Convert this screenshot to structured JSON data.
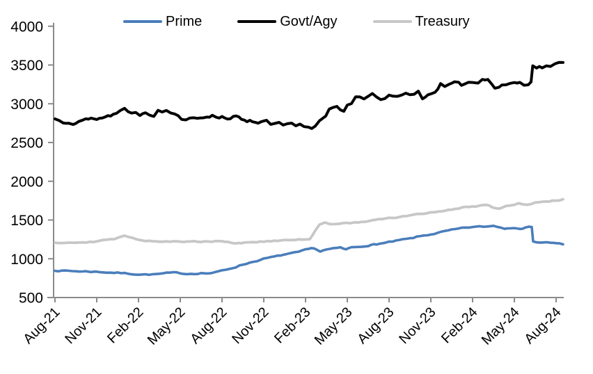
{
  "chart_data": {
    "type": "line",
    "title": "",
    "legend": {
      "position": "top",
      "entries": [
        "Prime",
        "Govt/Agy",
        "Treasury"
      ]
    },
    "x_axis": {
      "tick_labels": [
        "Aug-21",
        "Nov-21",
        "Feb-22",
        "May-22",
        "Aug-22",
        "Nov-22",
        "Feb-23",
        "May-23",
        "Aug-23",
        "Nov-23",
        "Feb-24",
        "May-24",
        "Aug-24"
      ],
      "tick_months": [
        0,
        3,
        6,
        9,
        12,
        15,
        18,
        21,
        24,
        27,
        30,
        33,
        36
      ],
      "range_months": [
        0,
        36.5
      ]
    },
    "y_axis": {
      "ticks": [
        500,
        1000,
        1500,
        2000,
        2500,
        3000,
        3500,
        4000
      ],
      "min": 500,
      "max": 4000,
      "gridlines": false
    },
    "axis_color": "#8a8a8a",
    "text_color": "#000000",
    "background_color": "#ffffff",
    "series": [
      {
        "name": "Prime",
        "color": "#4a7ebb",
        "anchors": [
          [
            0,
            852
          ],
          [
            0.5,
            846
          ],
          [
            1,
            843
          ],
          [
            1.5,
            840
          ],
          [
            2,
            838
          ],
          [
            3,
            833
          ],
          [
            3.5,
            828
          ],
          [
            4,
            823
          ],
          [
            4.5,
            818
          ],
          [
            5,
            812
          ],
          [
            5.5,
            806
          ],
          [
            6,
            802
          ],
          [
            6.5,
            798
          ],
          [
            7,
            797
          ],
          [
            7.5,
            803
          ],
          [
            8,
            812
          ],
          [
            8.5,
            817
          ],
          [
            9,
            813
          ],
          [
            9.5,
            807
          ],
          [
            10,
            812
          ],
          [
            10.5,
            817
          ],
          [
            11,
            813
          ],
          [
            11.5,
            822
          ],
          [
            12,
            845
          ],
          [
            12.5,
            870
          ],
          [
            13,
            898
          ],
          [
            13.5,
            926
          ],
          [
            14,
            952
          ],
          [
            14.5,
            976
          ],
          [
            15,
            998
          ],
          [
            15.5,
            1016
          ],
          [
            16,
            1032
          ],
          [
            16.4,
            1052
          ],
          [
            17,
            1066
          ],
          [
            17.5,
            1084
          ],
          [
            18,
            1110
          ],
          [
            18.6,
            1138
          ],
          [
            19.05,
            1096
          ],
          [
            19.5,
            1118
          ],
          [
            20,
            1128
          ],
          [
            20.5,
            1140
          ],
          [
            20.9,
            1118
          ],
          [
            21.3,
            1146
          ],
          [
            21.8,
            1158
          ],
          [
            22.2,
            1170
          ],
          [
            22.5,
            1162
          ],
          [
            22.9,
            1184
          ],
          [
            23.3,
            1194
          ],
          [
            23.7,
            1202
          ],
          [
            24,
            1212
          ],
          [
            24.5,
            1228
          ],
          [
            25,
            1245
          ],
          [
            25.5,
            1258
          ],
          [
            26,
            1280
          ],
          [
            26.5,
            1298
          ],
          [
            27,
            1316
          ],
          [
            27.5,
            1334
          ],
          [
            28,
            1352
          ],
          [
            28.5,
            1368
          ],
          [
            29,
            1384
          ],
          [
            29.5,
            1398
          ],
          [
            30,
            1409
          ],
          [
            30.5,
            1412
          ],
          [
            31,
            1415
          ],
          [
            31.5,
            1425
          ],
          [
            32,
            1410
          ],
          [
            32.3,
            1390
          ],
          [
            32.7,
            1399
          ],
          [
            33,
            1407
          ],
          [
            33.4,
            1397
          ],
          [
            33.8,
            1404
          ],
          [
            34.25,
            1409
          ],
          [
            34.35,
            1230
          ],
          [
            34.6,
            1217
          ],
          [
            35,
            1207
          ],
          [
            35.3,
            1215
          ],
          [
            35.6,
            1209
          ],
          [
            36,
            1196
          ],
          [
            36.5,
            1186
          ]
        ]
      },
      {
        "name": "Govt/Agy",
        "color": "#000000",
        "anchors": [
          [
            0,
            2802
          ],
          [
            0.3,
            2788
          ],
          [
            0.6,
            2772
          ],
          [
            1,
            2784
          ],
          [
            1.3,
            2772
          ],
          [
            1.7,
            2796
          ],
          [
            2,
            2800
          ],
          [
            2.4,
            2789
          ],
          [
            2.8,
            2806
          ],
          [
            3.2,
            2818
          ],
          [
            3.6,
            2830
          ],
          [
            4,
            2855
          ],
          [
            4.4,
            2878
          ],
          [
            4.7,
            2908
          ],
          [
            5,
            2946
          ],
          [
            5.25,
            2918
          ],
          [
            5.5,
            2878
          ],
          [
            5.8,
            2892
          ],
          [
            6.1,
            2868
          ],
          [
            6.5,
            2913
          ],
          [
            6.8,
            2886
          ],
          [
            7.1,
            2863
          ],
          [
            7.4,
            2910
          ],
          [
            7.7,
            2897
          ],
          [
            8,
            2905
          ],
          [
            8.3,
            2890
          ],
          [
            8.6,
            2879
          ],
          [
            8.85,
            2860
          ],
          [
            9.1,
            2796
          ],
          [
            9.4,
            2812
          ],
          [
            9.7,
            2825
          ],
          [
            10,
            2842
          ],
          [
            10.4,
            2832
          ],
          [
            10.9,
            2855
          ],
          [
            11.3,
            2845
          ],
          [
            11.6,
            2838
          ],
          [
            12,
            2836
          ],
          [
            12.4,
            2827
          ],
          [
            12.8,
            2830
          ],
          [
            13.2,
            2808
          ],
          [
            13.6,
            2797
          ],
          [
            14,
            2787
          ],
          [
            14.4,
            2778
          ],
          [
            14.8,
            2771
          ],
          [
            15.2,
            2760
          ],
          [
            15.5,
            2726
          ],
          [
            15.8,
            2747
          ],
          [
            16.1,
            2752
          ],
          [
            16.4,
            2703
          ],
          [
            16.7,
            2726
          ],
          [
            17,
            2733
          ],
          [
            17.3,
            2697
          ],
          [
            17.6,
            2710
          ],
          [
            17.9,
            2689
          ],
          [
            18.2,
            2678
          ],
          [
            18.45,
            2669
          ],
          [
            18.7,
            2691
          ],
          [
            19,
            2780
          ],
          [
            19.2,
            2801
          ],
          [
            19.45,
            2850
          ],
          [
            19.7,
            2945
          ],
          [
            20,
            2955
          ],
          [
            20.25,
            2971
          ],
          [
            20.5,
            2941
          ],
          [
            20.75,
            2931
          ],
          [
            21,
            2986
          ],
          [
            21.3,
            3020
          ],
          [
            21.6,
            3080
          ],
          [
            21.9,
            3071
          ],
          [
            22.2,
            3060
          ],
          [
            22.5,
            3077
          ],
          [
            22.8,
            3105
          ],
          [
            23.1,
            3089
          ],
          [
            23.4,
            3061
          ],
          [
            23.7,
            3087
          ],
          [
            24,
            3122
          ],
          [
            24.3,
            3110
          ],
          [
            24.6,
            3107
          ],
          [
            24.9,
            3132
          ],
          [
            25.2,
            3141
          ],
          [
            25.5,
            3108
          ],
          [
            25.8,
            3126
          ],
          [
            26.1,
            3149
          ],
          [
            26.4,
            3036
          ],
          [
            26.6,
            3068
          ],
          [
            26.8,
            3128
          ],
          [
            27,
            3151
          ],
          [
            27.3,
            3159
          ],
          [
            27.7,
            3255
          ],
          [
            28,
            3216
          ],
          [
            28.3,
            3231
          ],
          [
            28.7,
            3257
          ],
          [
            29,
            3247
          ],
          [
            29.4,
            3239
          ],
          [
            29.7,
            3259
          ],
          [
            30,
            3285
          ],
          [
            30.4,
            3299
          ],
          [
            30.7,
            3317
          ],
          [
            31.1,
            3329
          ],
          [
            31.4,
            3271
          ],
          [
            31.6,
            3217
          ],
          [
            31.9,
            3239
          ],
          [
            32.1,
            3254
          ],
          [
            32.4,
            3229
          ],
          [
            32.7,
            3235
          ],
          [
            33,
            3241
          ],
          [
            33.4,
            3251
          ],
          [
            33.7,
            3247
          ],
          [
            34,
            3261
          ],
          [
            34.2,
            3281
          ],
          [
            34.32,
            3478
          ],
          [
            34.6,
            3471
          ],
          [
            34.8,
            3485
          ],
          [
            35,
            3459
          ],
          [
            35.3,
            3476
          ],
          [
            35.6,
            3489
          ],
          [
            35.9,
            3504
          ],
          [
            36.2,
            3517
          ],
          [
            36.5,
            3532
          ]
        ]
      },
      {
        "name": "Treasury",
        "color": "#c7c7c7",
        "anchors": [
          [
            0,
            1212
          ],
          [
            0.5,
            1210
          ],
          [
            1,
            1214
          ],
          [
            1.5,
            1212
          ],
          [
            2,
            1218
          ],
          [
            2.5,
            1222
          ],
          [
            3,
            1228
          ],
          [
            3.5,
            1236
          ],
          [
            4,
            1248
          ],
          [
            4.5,
            1266
          ],
          [
            5,
            1290
          ],
          [
            5.3,
            1280
          ],
          [
            5.6,
            1268
          ],
          [
            6,
            1252
          ],
          [
            6.5,
            1240
          ],
          [
            7,
            1232
          ],
          [
            7.5,
            1228
          ],
          [
            8,
            1226
          ],
          [
            8.5,
            1221
          ],
          [
            9,
            1216
          ],
          [
            9.5,
            1218
          ],
          [
            10,
            1221
          ],
          [
            10.5,
            1224
          ],
          [
            11,
            1226
          ],
          [
            11.5,
            1228
          ],
          [
            12,
            1232
          ],
          [
            12.6,
            1215
          ],
          [
            13,
            1200
          ],
          [
            13.4,
            1206
          ],
          [
            14,
            1213
          ],
          [
            14.5,
            1218
          ],
          [
            15,
            1222
          ],
          [
            15.5,
            1226
          ],
          [
            16,
            1231
          ],
          [
            16.5,
            1236
          ],
          [
            17,
            1241
          ],
          [
            17.5,
            1246
          ],
          [
            18,
            1250
          ],
          [
            18.3,
            1257
          ],
          [
            18.7,
            1360
          ],
          [
            19,
            1432
          ],
          [
            19.4,
            1468
          ],
          [
            19.8,
            1456
          ],
          [
            20.3,
            1451
          ],
          [
            20.7,
            1460
          ],
          [
            21,
            1468
          ],
          [
            21.4,
            1461
          ],
          [
            21.8,
            1471
          ],
          [
            22.2,
            1478
          ],
          [
            22.6,
            1486
          ],
          [
            23,
            1497
          ],
          [
            23.5,
            1508
          ],
          [
            24,
            1520
          ],
          [
            24.5,
            1534
          ],
          [
            25,
            1547
          ],
          [
            25.5,
            1557
          ],
          [
            26,
            1568
          ],
          [
            26.5,
            1582
          ],
          [
            27,
            1597
          ],
          [
            27.5,
            1610
          ],
          [
            28,
            1624
          ],
          [
            28.5,
            1638
          ],
          [
            29,
            1651
          ],
          [
            29.5,
            1664
          ],
          [
            30,
            1676
          ],
          [
            30.4,
            1684
          ],
          [
            30.8,
            1696
          ],
          [
            31.2,
            1686
          ],
          [
            31.6,
            1656
          ],
          [
            31.9,
            1650
          ],
          [
            32.2,
            1671
          ],
          [
            32.6,
            1687
          ],
          [
            33,
            1702
          ],
          [
            33.3,
            1717
          ],
          [
            33.6,
            1701
          ],
          [
            33.9,
            1695
          ],
          [
            34.2,
            1711
          ],
          [
            34.5,
            1721
          ],
          [
            35,
            1731
          ],
          [
            35.5,
            1742
          ],
          [
            36,
            1755
          ],
          [
            36.5,
            1768
          ]
        ]
      }
    ]
  }
}
